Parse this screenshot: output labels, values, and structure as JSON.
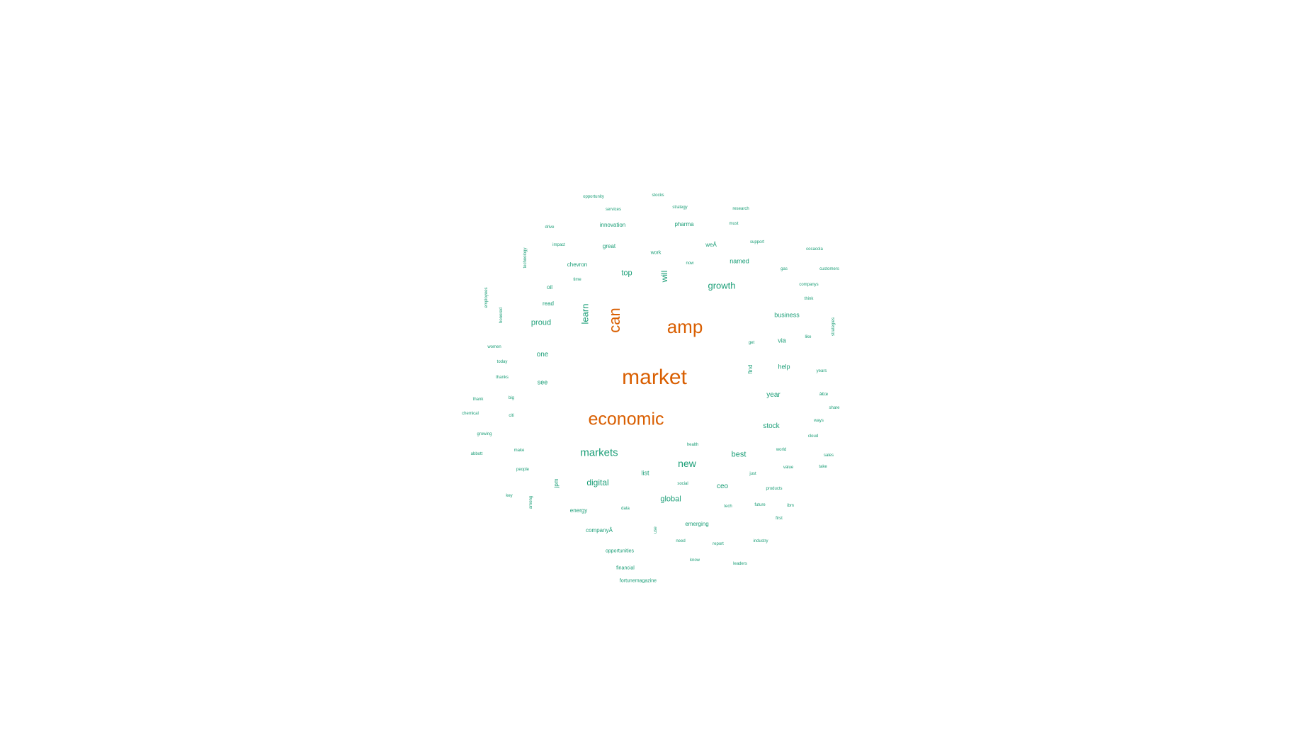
{
  "palette": {
    "large": "#d95f02",
    "small": "#1b9e77"
  },
  "words": [
    {
      "text": "market",
      "tier": "large"
    },
    {
      "text": "economic",
      "tier": "large"
    },
    {
      "text": "amp",
      "tier": "large"
    },
    {
      "text": "can",
      "tier": "large"
    },
    {
      "text": "markets",
      "tier": "small"
    },
    {
      "text": "growth",
      "tier": "small"
    },
    {
      "text": "new",
      "tier": "small"
    },
    {
      "text": "digital",
      "tier": "small"
    },
    {
      "text": "global",
      "tier": "small"
    },
    {
      "text": "learn",
      "tier": "small"
    },
    {
      "text": "best",
      "tier": "small"
    },
    {
      "text": "proud",
      "tier": "small"
    },
    {
      "text": "one",
      "tier": "small"
    },
    {
      "text": "see",
      "tier": "small"
    },
    {
      "text": "top",
      "tier": "small"
    },
    {
      "text": "will",
      "tier": "small"
    },
    {
      "text": "stock",
      "tier": "small"
    },
    {
      "text": "year",
      "tier": "small"
    },
    {
      "text": "ceo",
      "tier": "small"
    },
    {
      "text": "help",
      "tier": "small"
    },
    {
      "text": "via",
      "tier": "small"
    },
    {
      "text": "business",
      "tier": "small"
    },
    {
      "text": "named",
      "tier": "small"
    },
    {
      "text": "list",
      "tier": "small"
    },
    {
      "text": "chevron",
      "tier": "small"
    },
    {
      "text": "great",
      "tier": "small"
    },
    {
      "text": "innovation",
      "tier": "small"
    },
    {
      "text": "pharma",
      "tier": "small"
    },
    {
      "text": "work",
      "tier": "small"
    },
    {
      "text": "weÂ",
      "tier": "small"
    },
    {
      "text": "oil",
      "tier": "small"
    },
    {
      "text": "read",
      "tier": "small"
    },
    {
      "text": "energy",
      "tier": "small"
    },
    {
      "text": "companyÂ",
      "tier": "small"
    },
    {
      "text": "emerging",
      "tier": "small"
    },
    {
      "text": "jpm",
      "tier": "small"
    },
    {
      "text": "find",
      "tier": "small"
    },
    {
      "text": "opportunities",
      "tier": "small"
    },
    {
      "text": "financial",
      "tier": "small"
    },
    {
      "text": "fortunemagazine",
      "tier": "small"
    },
    {
      "text": "opportunity",
      "tier": "small"
    },
    {
      "text": "stocks",
      "tier": "small"
    },
    {
      "text": "services",
      "tier": "small"
    },
    {
      "text": "strategy",
      "tier": "small"
    },
    {
      "text": "research",
      "tier": "small"
    },
    {
      "text": "drive",
      "tier": "small"
    },
    {
      "text": "must",
      "tier": "small"
    },
    {
      "text": "impact",
      "tier": "small"
    },
    {
      "text": "support",
      "tier": "small"
    },
    {
      "text": "cocacola",
      "tier": "small"
    },
    {
      "text": "technology",
      "tier": "small"
    },
    {
      "text": "now",
      "tier": "small"
    },
    {
      "text": "gas",
      "tier": "small"
    },
    {
      "text": "customers",
      "tier": "small"
    },
    {
      "text": "time",
      "tier": "small"
    },
    {
      "text": "companys",
      "tier": "small"
    },
    {
      "text": "employees",
      "tier": "small"
    },
    {
      "text": "think",
      "tier": "small"
    },
    {
      "text": "honored",
      "tier": "small"
    },
    {
      "text": "strategies",
      "tier": "small"
    },
    {
      "text": "like",
      "tier": "small"
    },
    {
      "text": "get",
      "tier": "small"
    },
    {
      "text": "women",
      "tier": "small"
    },
    {
      "text": "today",
      "tier": "small"
    },
    {
      "text": "years",
      "tier": "small"
    },
    {
      "text": "thanks",
      "tier": "small"
    },
    {
      "text": "â€œ",
      "tier": "small"
    },
    {
      "text": "thank",
      "tier": "small"
    },
    {
      "text": "big",
      "tier": "small"
    },
    {
      "text": "share",
      "tier": "small"
    },
    {
      "text": "chemical",
      "tier": "small"
    },
    {
      "text": "citi",
      "tier": "small"
    },
    {
      "text": "ways",
      "tier": "small"
    },
    {
      "text": "growing",
      "tier": "small"
    },
    {
      "text": "cloud",
      "tier": "small"
    },
    {
      "text": "health",
      "tier": "small"
    },
    {
      "text": "make",
      "tier": "small"
    },
    {
      "text": "abbott",
      "tier": "small"
    },
    {
      "text": "world",
      "tier": "small"
    },
    {
      "text": "sales",
      "tier": "small"
    },
    {
      "text": "people",
      "tier": "small"
    },
    {
      "text": "value",
      "tier": "small"
    },
    {
      "text": "take",
      "tier": "small"
    },
    {
      "text": "just",
      "tier": "small"
    },
    {
      "text": "social",
      "tier": "small"
    },
    {
      "text": "products",
      "tier": "small"
    },
    {
      "text": "key",
      "tier": "small"
    },
    {
      "text": "among",
      "tier": "small"
    },
    {
      "text": "data",
      "tier": "small"
    },
    {
      "text": "tech",
      "tier": "small"
    },
    {
      "text": "future",
      "tier": "small"
    },
    {
      "text": "ibm",
      "tier": "small"
    },
    {
      "text": "first",
      "tier": "small"
    },
    {
      "text": "use",
      "tier": "small"
    },
    {
      "text": "need",
      "tier": "small"
    },
    {
      "text": "report",
      "tier": "small"
    },
    {
      "text": "industry",
      "tier": "small"
    },
    {
      "text": "know",
      "tier": "small"
    },
    {
      "text": "leaders",
      "tier": "small"
    }
  ]
}
